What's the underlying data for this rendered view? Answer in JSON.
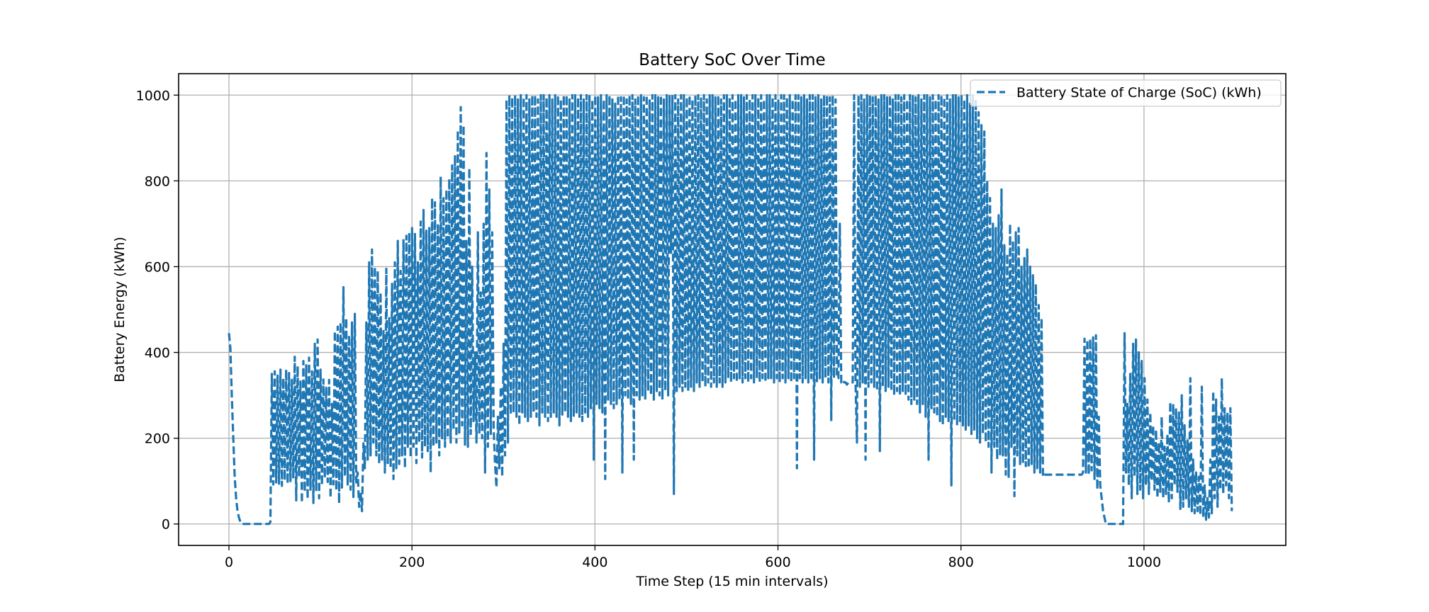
{
  "chart_data": {
    "type": "line",
    "title": "Battery SoC Over Time",
    "xlabel": "Time Step (15 min intervals)",
    "ylabel": "Battery Energy (kWh)",
    "xlim": [
      -55,
      1155
    ],
    "ylim": [
      -50,
      1050
    ],
    "xticks": [
      0,
      200,
      400,
      600,
      800,
      1000
    ],
    "yticks": [
      0,
      200,
      400,
      600,
      800,
      1000
    ],
    "grid": true,
    "legend": "top-right",
    "line_style": "dashed",
    "color": "#1f77b4",
    "series": [
      {
        "name": "Battery State of Charge (SoC) (kWh)",
        "values": [
          445,
          410,
          300,
          200,
          110,
          60,
          30,
          15,
          5,
          0,
          0,
          0,
          0,
          0,
          0,
          0,
          0,
          0,
          0,
          0,
          0,
          0,
          0,
          0,
          0,
          0,
          0,
          0,
          0,
          5,
          350,
          92,
          356,
          97,
          346,
          94,
          360,
          89,
          340,
          102,
          360,
          94,
          352,
          100,
          336,
          106,
          390,
          55,
          368,
          110,
          332,
          49,
          380,
          75,
          370,
          58,
          388,
          80,
          356,
          49,
          420,
          79,
          430,
          60,
          360,
          90,
          337,
          107,
          320,
          98,
          336,
          60,
          280,
          92,
          450,
          78,
          460,
          48,
          470,
          85,
          552,
          110,
          480,
          92,
          440,
          80,
          470,
          63,
          490,
          97,
          120,
          40,
          75,
          30,
          188,
          130,
          470,
          150,
          610,
          160,
          640,
          190,
          600,
          160,
          590,
          140,
          540,
          150,
          450,
          120,
          595,
          140,
          480,
          130,
          560,
          105,
          610,
          130,
          660,
          140,
          590,
          160,
          664,
          130,
          672,
          180,
          680,
          155,
          690,
          180,
          676,
          142,
          610,
          190,
          705,
          155,
          732,
          180,
          684,
          170,
          690,
          120,
          760,
          180,
          750,
          190,
          700,
          160,
          810,
          200,
          760,
          180,
          780,
          200,
          805,
          190,
          836,
          220,
          860,
          190,
          918,
          213,
          972,
          230,
          930,
          185,
          660,
          180,
          830,
          210,
          600,
          240,
          400,
          190,
          680,
          210,
          540,
          200,
          700,
          120,
          865,
          180,
          780,
          210,
          680,
          225,
          140,
          85,
          250,
          130,
          320,
          110,
          420,
          160,
          990,
          190,
          1000,
          255,
          995,
          260,
          1000,
          250,
          990,
          230,
          1000,
          260,
          995,
          250,
          1000,
          240,
          990,
          250,
          1000,
          260,
          1000,
          250,
          990,
          230,
          1000,
          260,
          1000,
          250,
          995,
          240,
          1000,
          250,
          990,
          260,
          1000,
          250,
          1000,
          230,
          990,
          255,
          1000,
          260,
          1000,
          250,
          990,
          240,
          1000,
          250,
          1000,
          260,
          995,
          250,
          1000,
          240,
          990,
          260,
          1000,
          250,
          1000,
          270,
          990,
          150,
          1000,
          280,
          995,
          270,
          1000,
          260,
          990,
          105,
          1000,
          290,
          1000,
          280,
          990,
          270,
          980,
          280,
          1000,
          290,
          995,
          120,
          1000,
          300,
          990,
          290,
          1000,
          280,
          1000,
          150,
          990,
          300,
          1000,
          290,
          1000,
          300,
          995,
          290,
          1000,
          310,
          990,
          300,
          1000,
          290,
          1000,
          310,
          995,
          300,
          1000,
          290,
          990,
          310,
          1000,
          300,
          1000,
          630,
          1000,
          70,
          1000,
          310,
          990,
          320,
          1000,
          310,
          1000,
          320,
          995,
          310,
          1000,
          320,
          990,
          310,
          1000,
          330,
          1000,
          320,
          995,
          330,
          1000,
          320,
          990,
          330,
          1000,
          320,
          1000,
          330,
          995,
          320,
          1000,
          330,
          990,
          320,
          1000,
          330,
          1000,
          340,
          995,
          330,
          1000,
          340,
          990,
          330,
          1000,
          340,
          1000,
          330,
          995,
          340,
          1000,
          330,
          990,
          340,
          1000,
          330,
          1000,
          340,
          995,
          330,
          1000,
          340,
          990,
          330,
          1000,
          340,
          1000,
          340,
          995,
          330,
          1000,
          340,
          990,
          330,
          1000,
          340,
          1000,
          330,
          995,
          340,
          1000,
          330,
          990,
          340,
          1000,
          130,
          1000,
          340,
          995,
          330,
          1000,
          340,
          990,
          330,
          1000,
          340,
          1000,
          150,
          995,
          330,
          1000,
          340,
          990,
          330,
          1000,
          340,
          1000,
          330,
          995,
          240,
          1000,
          340,
          990,
          340,
          340,
          700,
          330,
          335,
          330,
          330,
          325,
          330,
          330,
          330,
          330,
          1000,
          330,
          190,
          1000,
          320,
          1000,
          330,
          990,
          150,
          1000,
          320,
          1000,
          330,
          995,
          320,
          1000,
          310,
          990,
          170,
          1000,
          320,
          1000,
          310,
          995,
          320,
          1000,
          310,
          990,
          300,
          1000,
          310,
          1000,
          300,
          995,
          310,
          1000,
          300,
          990,
          290,
          1000,
          280,
          1000,
          290,
          995,
          280,
          1000,
          260,
          990,
          280,
          1000,
          250,
          1000,
          150,
          995,
          270,
          1000,
          260,
          990,
          250,
          1000,
          240,
          1000,
          230,
          995,
          250,
          1000,
          240,
          990,
          90,
          1000,
          240,
          1000,
          230,
          995,
          240,
          1000,
          230,
          990,
          220,
          1000,
          230,
          980,
          210,
          1000,
          220,
          990,
          200,
          960,
          190,
          930,
          210,
          915,
          190,
          800,
          180,
          760,
          120,
          700,
          180,
          690,
          150,
          720,
          160,
          780,
          160,
          650,
          115,
          630,
          110,
          700,
          180,
          660,
          65,
          680,
          160,
          690,
          140,
          600,
          140,
          620,
          135,
          640,
          130,
          600,
          140,
          580,
          120,
          560,
          130,
          510,
          120,
          480,
          110,
          115,
          115,
          115,
          115,
          115,
          115,
          115,
          115,
          115,
          115,
          115,
          115,
          115,
          115,
          115,
          115,
          115,
          115,
          115,
          115,
          115,
          115,
          115,
          115,
          115,
          115,
          115,
          120,
          432,
          120,
          430,
          115,
          432,
          125,
          435,
          105,
          440,
          80,
          250,
          90,
          60,
          30,
          15,
          0,
          0,
          0,
          0,
          0,
          0,
          0,
          0,
          0,
          0,
          0,
          0,
          0,
          445,
          120,
          280,
          90,
          350,
          60,
          420,
          110,
          430,
          70,
          400,
          80,
          380,
          60,
          340,
          90,
          290,
          70,
          260,
          100,
          230,
          80,
          220,
          60,
          190,
          75,
          250,
          60,
          180,
          70,
          210,
          50,
          285,
          60,
          280,
          90,
          270,
          75,
          260,
          35,
          300,
          40,
          230,
          60,
          195,
          40,
          340,
          30,
          150,
          25,
          120,
          30,
          110,
          20,
          320,
          15,
          90,
          10,
          60,
          15,
          150,
          25,
          310,
          60,
          290,
          40,
          250,
          80,
          340,
          70,
          270,
          90,
          260,
          60,
          270,
          30
        ]
      }
    ]
  }
}
